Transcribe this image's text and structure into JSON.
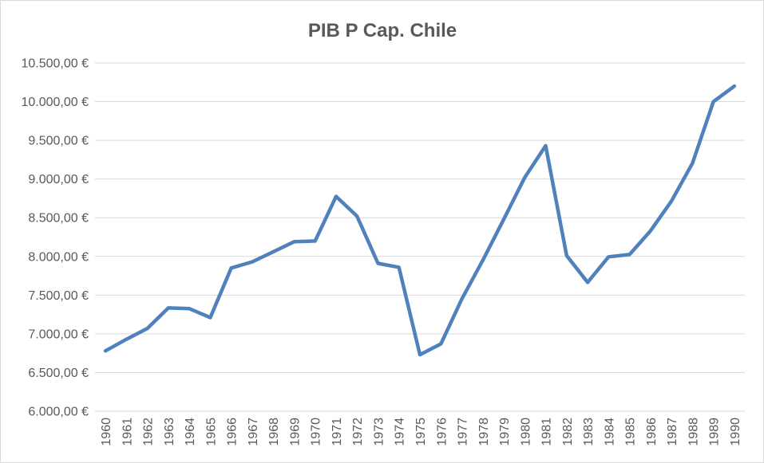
{
  "chart_data": {
    "type": "line",
    "title": "PIB P Cap. Chile",
    "xlabel": "",
    "ylabel": "",
    "categories": [
      "1960",
      "1961",
      "1962",
      "1963",
      "1964",
      "1965",
      "1966",
      "1967",
      "1968",
      "1969",
      "1970",
      "1971",
      "1972",
      "1973",
      "1974",
      "1975",
      "1976",
      "1977",
      "1978",
      "1979",
      "1980",
      "1981",
      "1982",
      "1983",
      "1984",
      "1985",
      "1986",
      "1987",
      "1988",
      "1989",
      "1990"
    ],
    "series": [
      {
        "name": "",
        "color": "#4f81bd",
        "values": [
          6780,
          6930,
          7070,
          7335,
          7325,
          7210,
          7850,
          7930,
          8060,
          8190,
          8200,
          8775,
          8520,
          7910,
          7860,
          6730,
          6870,
          7450,
          7950,
          8480,
          9020,
          9430,
          8010,
          7665,
          7995,
          8025,
          8330,
          8715,
          9205,
          10000,
          10200
        ]
      }
    ],
    "ylim": [
      6000,
      10500
    ],
    "yticks": [
      6000,
      6500,
      7000,
      7500,
      8000,
      8500,
      9000,
      9500,
      10000,
      10500
    ],
    "ytick_labels": [
      "6.000,00 €",
      "6.500,00 €",
      "7.000,00 €",
      "7.500,00 €",
      "8.000,00 €",
      "8.500,00 €",
      "9.000,00 €",
      "9.500,00 €",
      "10.000,00 €",
      "10.500,00 €"
    ],
    "grid": true,
    "legend": "none",
    "colors": {
      "gridline": "#d9d9d9",
      "text": "#595959",
      "background": "#ffffff"
    }
  }
}
